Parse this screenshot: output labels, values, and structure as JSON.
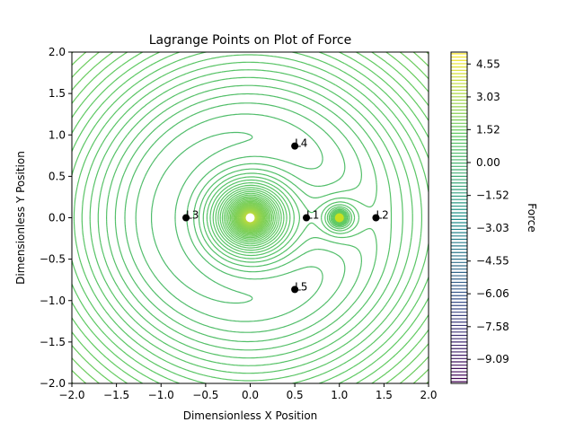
{
  "chart_data": {
    "type": "contour",
    "title": "Lagrange Points on Plot of Force",
    "xlabel": "Dimensionless X Position",
    "ylabel": "Dimensionless Y Position",
    "xlim": [
      -2.0,
      2.0
    ],
    "ylim": [
      -2.0,
      2.0
    ],
    "xticks": [
      "−2.0",
      "−1.5",
      "−1.0",
      "−0.5",
      "0.0",
      "0.5",
      "1.0",
      "1.5",
      "2.0"
    ],
    "yticks": [
      "−2.0",
      "−1.5",
      "−1.0",
      "−0.5",
      "0.0",
      "0.5",
      "1.0",
      "1.5",
      "2.0"
    ],
    "xtick_values": [
      -2.0,
      -1.5,
      -1.0,
      -0.5,
      0.0,
      0.5,
      1.0,
      1.5,
      2.0
    ],
    "ytick_values": [
      -2.0,
      -1.5,
      -1.0,
      -0.5,
      0.0,
      0.5,
      1.0,
      1.5,
      2.0
    ],
    "colormap": "viridis",
    "bodies": [
      {
        "x": 0.0,
        "y": 0.0,
        "color": "#ffffff"
      },
      {
        "x": 1.0,
        "y": 0.0,
        "color": "#c8e020"
      }
    ],
    "points": [
      {
        "name": "L1",
        "x": 0.63,
        "y": 0.0
      },
      {
        "name": "L2",
        "x": 1.41,
        "y": 0.0
      },
      {
        "name": "L3",
        "x": -0.72,
        "y": 0.0
      },
      {
        "name": "L4",
        "x": 0.5,
        "y": 0.866
      },
      {
        "name": "L5",
        "x": 0.5,
        "y": -0.866
      }
    ],
    "colorbar": {
      "label": "Force",
      "range": [
        -10.2,
        5.1
      ],
      "tick_values": [
        4.55,
        3.03,
        1.52,
        0.0,
        -1.52,
        -3.03,
        -4.55,
        -6.06,
        -7.58,
        -9.09
      ],
      "tick_labels": [
        "4.55",
        "3.03",
        "1.52",
        "0.00",
        "−1.52",
        "−3.03",
        "−4.55",
        "−6.06",
        "−7.58",
        "−9.09"
      ]
    }
  }
}
